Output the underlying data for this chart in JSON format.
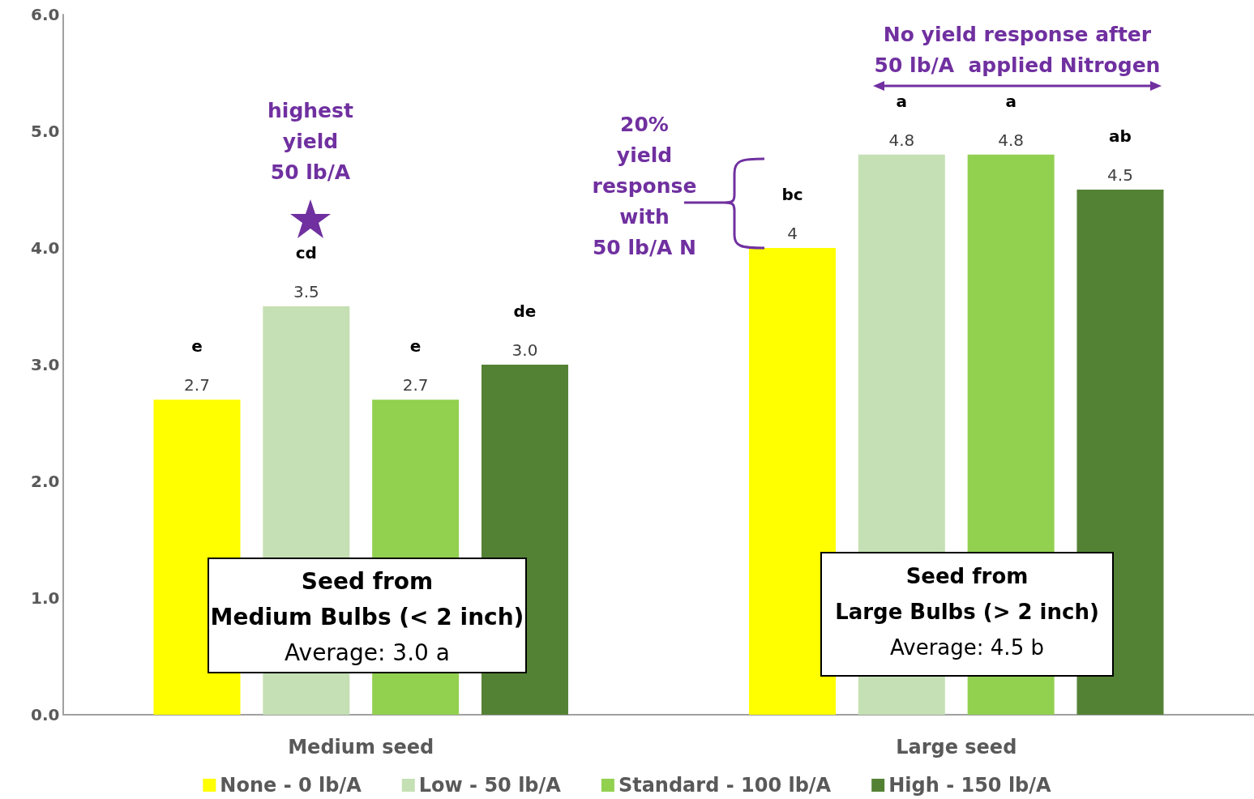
{
  "chart_data": {
    "type": "bar",
    "categories": [
      "Medium seed",
      "Large seed"
    ],
    "series": [
      {
        "name": "None - 0 lb/A",
        "color": "#ffff00",
        "values": [
          2.7,
          4.0
        ],
        "value_labels": [
          "2.7",
          "4"
        ]
      },
      {
        "name": "Low - 50 lb/A",
        "color": "#c5e0b4",
        "values": [
          3.5,
          4.8
        ],
        "value_labels": [
          "3.5",
          "4.8"
        ]
      },
      {
        "name": "Standard - 100 lb/A",
        "color": "#92d050",
        "values": [
          2.7,
          4.8
        ],
        "value_labels": [
          "2.7",
          "4.8"
        ]
      },
      {
        "name": "High - 150 lb/A",
        "color": "#548235",
        "values": [
          3.0,
          4.5
        ],
        "value_labels": [
          "3.0",
          "4.5"
        ]
      }
    ],
    "ylim": [
      0,
      6
    ],
    "yticks": [
      {
        "value": 0,
        "label": "0.0"
      },
      {
        "value": 1,
        "label": "1.0"
      },
      {
        "value": 2,
        "label": "2.0"
      },
      {
        "value": 3,
        "label": "3.0"
      },
      {
        "value": 4,
        "label": "4.0"
      },
      {
        "value": 5,
        "label": "5.0"
      },
      {
        "value": 6,
        "label": "6.0"
      }
    ],
    "grid": false,
    "legend": "bottom",
    "annotations": [
      "highest\nyield\n50 lb/A",
      "20%\nyield\nresponse\nwith\n50 lb/A N",
      "No yield response after\n50 lb/A  applied Nitrogen",
      "Seed from\nMedium Bulbs (< 2 inch)\nAverage: 3.0 a",
      "Seed from\nLarge Bulbs (> 2 inch)\nAverage: 4.5 b",
      "e",
      "cd",
      "e",
      "de",
      "bc",
      "a",
      "a",
      "ab"
    ]
  }
}
